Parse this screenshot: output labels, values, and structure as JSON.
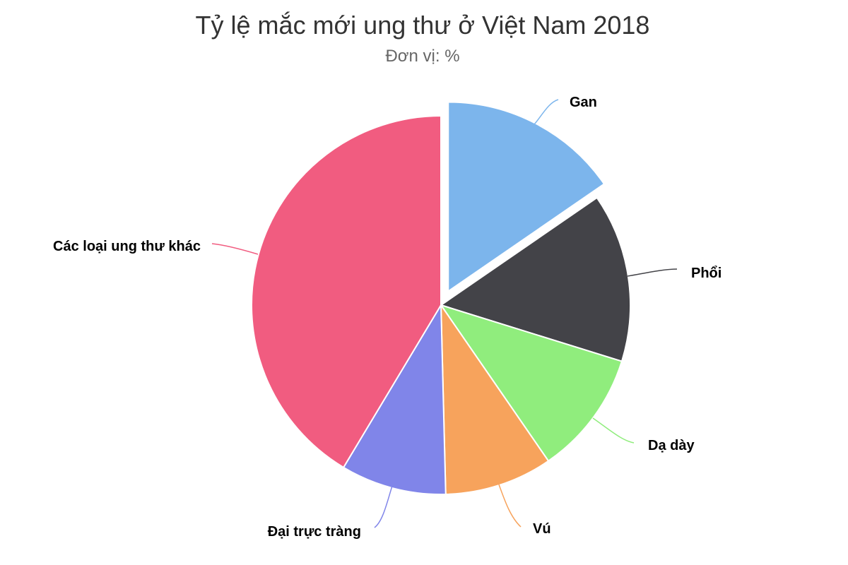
{
  "chart_data": {
    "type": "pie",
    "title": "Tỷ lệ mắc mới ung thư ở Việt Nam 2018",
    "subtitle": "Đơn vị: %",
    "slices": [
      {
        "label": "Gan",
        "value": 15.4,
        "color": "#7cb5ec",
        "sliced": true
      },
      {
        "label": "Phổi",
        "value": 14.4,
        "color": "#434348"
      },
      {
        "label": "Dạ dày",
        "value": 10.6,
        "color": "#90ed7d"
      },
      {
        "label": "Vú",
        "value": 9.2,
        "color": "#f7a35c"
      },
      {
        "label": "Đại trực tràng",
        "value": 9.0,
        "color": "#8085e9"
      },
      {
        "label": "Các loại ung thư khác",
        "value": 41.4,
        "color": "#f15c80"
      }
    ]
  }
}
